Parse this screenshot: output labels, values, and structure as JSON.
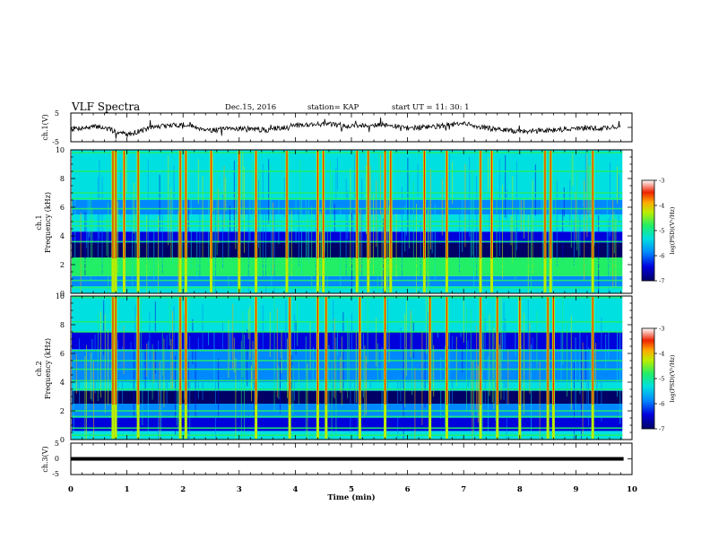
{
  "header": {
    "title": "VLF Spectra",
    "date": "Dec.15, 2016",
    "station": "station= KAP",
    "start": "start  UT  =    11: 30: 1"
  },
  "colors": {
    "spectrogram_scale": [
      "#000066",
      "#0000dd",
      "#0088ff",
      "#00e0e0",
      "#22ee66",
      "#bbee00",
      "#ffaa00",
      "#ee2200",
      "#ffffff"
    ]
  },
  "chart_data": [
    {
      "type": "line",
      "panel": "ch1-waveform",
      "ylabel": "ch.1(V)",
      "ylim": [
        -5,
        5
      ],
      "yticks": [
        "5",
        "-5"
      ],
      "xlim": [
        0,
        10
      ],
      "series": [
        {
          "x": [
            0,
            0.5,
            1.0,
            1.5,
            2.0,
            2.5,
            3.0,
            3.5,
            4.0,
            4.5,
            5.0,
            5.5,
            6.0,
            6.5,
            7.0,
            7.5,
            8.0,
            8.5,
            9.0,
            9.5,
            9.8
          ],
          "values": [
            -0.5,
            0.3,
            -2.5,
            0.2,
            1.0,
            -1.0,
            -0.3,
            -1.0,
            0.8,
            1.2,
            0.5,
            1.0,
            -0.2,
            0.3,
            1.3,
            -0.5,
            -1.5,
            -1.0,
            -0.4,
            -0.3,
            0.4
          ]
        }
      ]
    },
    {
      "type": "heatmap",
      "panel": "ch1-spectrogram",
      "ylabel": [
        "ch.1",
        "Frequency  (kHz)"
      ],
      "ylim": [
        0,
        10
      ],
      "xlim": [
        0,
        10
      ],
      "yticks": [
        "0",
        "2",
        "4",
        "6",
        "8",
        "10"
      ],
      "colorbar": {
        "label": "log(PSD)(V²/Hz)",
        "ticks": [
          "-3",
          "-4",
          "-5",
          "-6",
          "-7"
        ],
        "range": [
          -7,
          -3
        ]
      },
      "bands": [
        {
          "from": 0.0,
          "to": 0.5,
          "level": -5.3
        },
        {
          "from": 0.5,
          "to": 1.2,
          "level": -6.2
        },
        {
          "from": 1.2,
          "to": 2.5,
          "level": -5.1
        },
        {
          "from": 2.5,
          "to": 3.5,
          "level": -6.9
        },
        {
          "from": 3.5,
          "to": 4.3,
          "level": -6.4
        },
        {
          "from": 4.3,
          "to": 5.5,
          "level": -5.4
        },
        {
          "from": 5.5,
          "to": 6.5,
          "level": -6.1
        },
        {
          "from": 6.5,
          "to": 8.5,
          "level": -5.3
        },
        {
          "from": 8.5,
          "to": 10.0,
          "level": -5.6
        }
      ],
      "lines_khz": [
        0.4,
        0.9,
        1.7,
        2.1,
        2.3,
        3.6,
        4.7,
        5.0,
        5.9,
        6.6,
        7.0,
        8.5,
        9.8
      ],
      "bursts_min": [
        0.75,
        0.8,
        0.95,
        1.2,
        1.95,
        2.05,
        2.5,
        3.0,
        3.3,
        3.85,
        4.4,
        4.5,
        5.1,
        5.3,
        5.6,
        5.7,
        6.3,
        6.7,
        7.3,
        7.5,
        8.45,
        8.55,
        9.3
      ]
    },
    {
      "type": "heatmap",
      "panel": "ch2-spectrogram",
      "ylabel": [
        "ch.2",
        "Frequency  (kHz)"
      ],
      "ylim": [
        0,
        10
      ],
      "xlim": [
        0,
        10
      ],
      "yticks": [
        "0",
        "2",
        "4",
        "6",
        "8",
        "10"
      ],
      "colorbar": {
        "label": "log(PSD)(V²/Hz)",
        "ticks": [
          "-3",
          "-4",
          "-5",
          "-6",
          "-7"
        ],
        "range": [
          -7,
          -3
        ]
      },
      "bands": [
        {
          "from": 0.0,
          "to": 0.6,
          "level": -5.5
        },
        {
          "from": 0.6,
          "to": 1.5,
          "level": -6.4
        },
        {
          "from": 1.5,
          "to": 2.5,
          "level": -6.1
        },
        {
          "from": 2.5,
          "to": 3.4,
          "level": -6.9
        },
        {
          "from": 3.4,
          "to": 4.0,
          "level": -5.3
        },
        {
          "from": 4.0,
          "to": 6.3,
          "level": -5.9
        },
        {
          "from": 6.3,
          "to": 7.5,
          "level": -6.4
        },
        {
          "from": 7.5,
          "to": 10.0,
          "level": -5.4
        }
      ],
      "lines_khz": [
        0.3,
        0.8,
        1.6,
        2.0,
        3.5,
        4.1,
        4.9,
        5.5,
        6.2,
        7.5,
        8.2,
        9.9
      ],
      "bursts_min": [
        0.75,
        0.8,
        1.2,
        1.95,
        2.05,
        3.3,
        3.9,
        4.4,
        4.55,
        5.15,
        5.6,
        6.4,
        6.7,
        7.3,
        7.6,
        8.0,
        8.5,
        8.6,
        9.3
      ]
    },
    {
      "type": "line",
      "panel": "ch3-waveform",
      "ylabel": "ch.3(V)",
      "ylim": [
        -5,
        5
      ],
      "yticks": [
        "5",
        "0",
        "-5"
      ],
      "xlim": [
        0,
        10
      ],
      "xlabel": "Time  (min)",
      "xticks": [
        "0",
        "1",
        "2",
        "3",
        "4",
        "5",
        "6",
        "7",
        "8",
        "9",
        "10"
      ],
      "series": [
        {
          "x": [
            0,
            9.85
          ],
          "values": [
            0,
            0
          ]
        }
      ]
    }
  ]
}
